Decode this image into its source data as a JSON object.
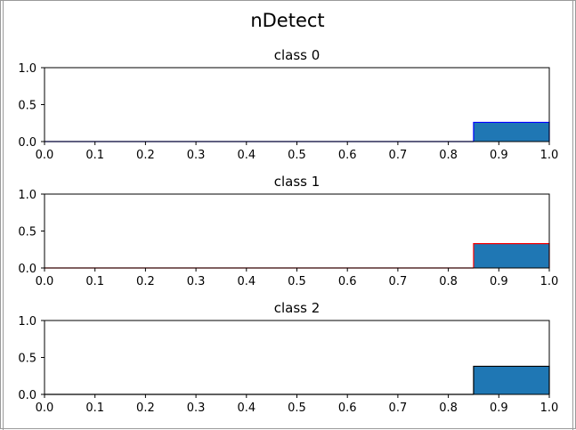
{
  "figure": {
    "title": "nDetect"
  },
  "chart_data": [
    {
      "type": "histogram",
      "title": "class 0",
      "xlim": [
        0.0,
        1.0
      ],
      "ylim": [
        0.0,
        1.0
      ],
      "xticks": [
        "0.0",
        "0.1",
        "0.2",
        "0.3",
        "0.4",
        "0.5",
        "0.6",
        "0.7",
        "0.8",
        "0.9",
        "1.0"
      ],
      "yticks": [
        "0.0",
        "0.5",
        "1.0"
      ],
      "bins": [
        {
          "x0": 0.0,
          "x1": 0.85,
          "value": 0.0
        },
        {
          "x0": 0.85,
          "x1": 1.0,
          "value": 0.26
        }
      ],
      "fill_color": "#1f77b4",
      "edge_color": "#0000ff"
    },
    {
      "type": "histogram",
      "title": "class 1",
      "xlim": [
        0.0,
        1.0
      ],
      "ylim": [
        0.0,
        1.0
      ],
      "xticks": [
        "0.0",
        "0.1",
        "0.2",
        "0.3",
        "0.4",
        "0.5",
        "0.6",
        "0.7",
        "0.8",
        "0.9",
        "1.0"
      ],
      "yticks": [
        "0.0",
        "0.5",
        "1.0"
      ],
      "bins": [
        {
          "x0": 0.0,
          "x1": 0.85,
          "value": 0.0
        },
        {
          "x0": 0.85,
          "x1": 1.0,
          "value": 0.33
        }
      ],
      "fill_color": "#1f77b4",
      "edge_color": "#ff0000"
    },
    {
      "type": "histogram",
      "title": "class 2",
      "xlim": [
        0.0,
        1.0
      ],
      "ylim": [
        0.0,
        1.0
      ],
      "xticks": [
        "0.0",
        "0.1",
        "0.2",
        "0.3",
        "0.4",
        "0.5",
        "0.6",
        "0.7",
        "0.8",
        "0.9",
        "1.0"
      ],
      "yticks": [
        "0.0",
        "0.5",
        "1.0"
      ],
      "bins": [
        {
          "x0": 0.0,
          "x1": 0.85,
          "value": 0.0
        },
        {
          "x0": 0.85,
          "x1": 1.0,
          "value": 0.38
        }
      ],
      "fill_color": "#1f77b4",
      "edge_color": "#000000"
    }
  ]
}
